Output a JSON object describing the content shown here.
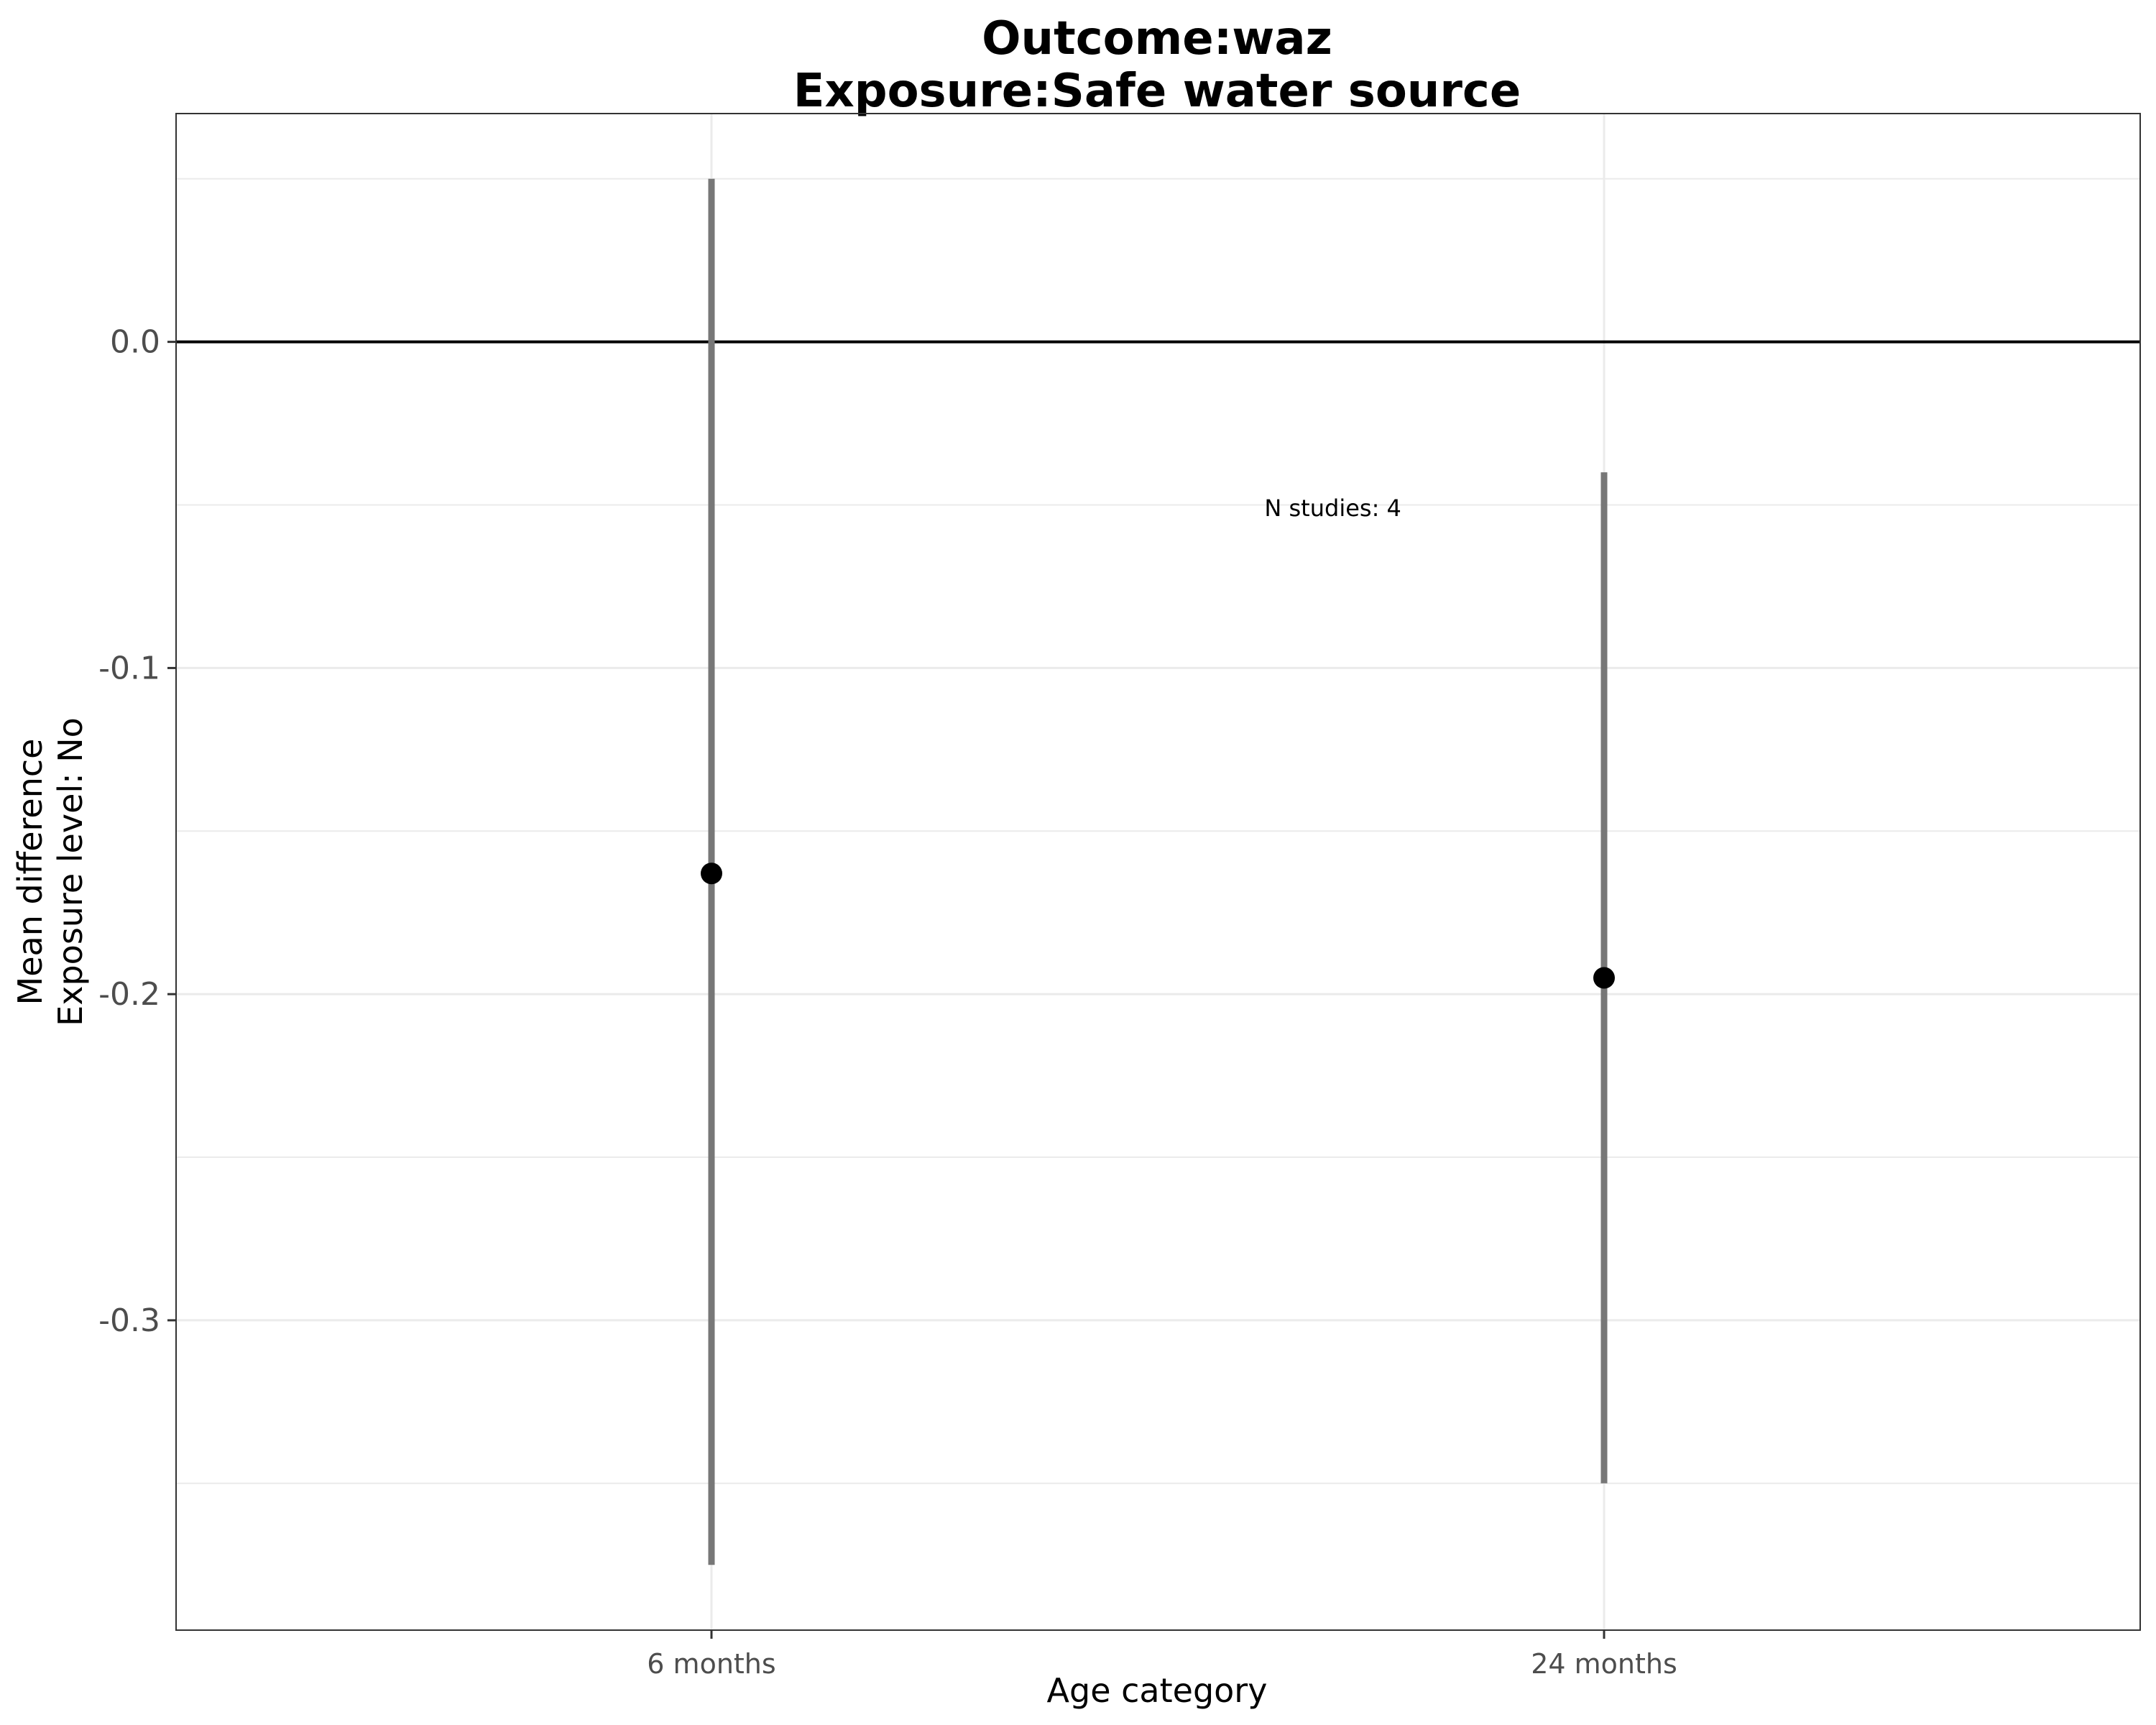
{
  "chart_data": {
    "type": "scatter",
    "title_line1": "Outcome:waz",
    "title_line2": "Exposure:Safe water source",
    "xlabel": "Age category",
    "ylabel_line1": "Mean difference",
    "ylabel_line2": "Exposure level: No",
    "categories": [
      "6 months",
      "24 months"
    ],
    "estimates": [
      -0.163,
      -0.195
    ],
    "ci_lower": [
      -0.375,
      -0.35
    ],
    "ci_upper": [
      0.05,
      -0.04
    ],
    "ylim": [
      -0.395,
      0.07
    ],
    "yticks": [
      0.0,
      -0.1,
      -0.2,
      -0.3
    ],
    "ytick_labels": [
      "0.0",
      "-0.1",
      "-0.2",
      "-0.3"
    ],
    "minor_gridlines": [
      0.05,
      -0.05,
      -0.15,
      -0.25,
      -0.35
    ],
    "reference_line": 0.0,
    "grid": true,
    "annotation": {
      "text": "N studies: 4",
      "x_category": 0.7,
      "y": -0.051
    },
    "colors": {
      "errorbar": "#777777",
      "point": "#000000",
      "reference": "#000000",
      "grid": "#ebebeb",
      "border": "#333333"
    }
  }
}
